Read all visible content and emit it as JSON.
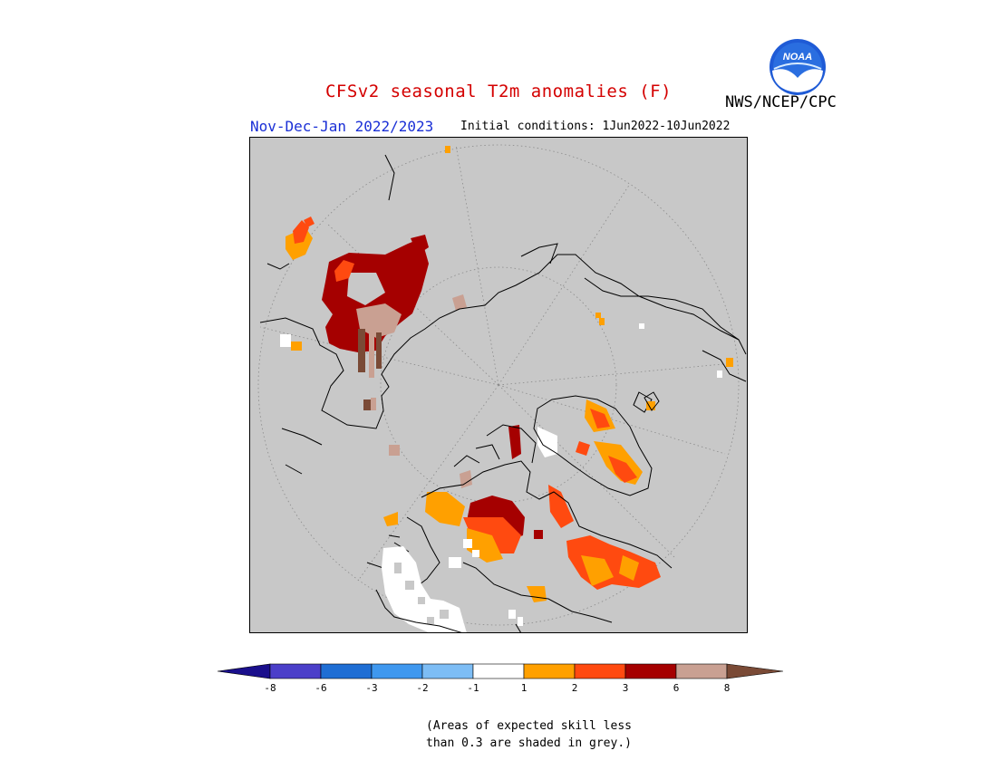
{
  "header": {
    "title": "CFSv2 seasonal T2m anomalies (F)",
    "agency": "NWS/NCEP/CPC",
    "logo_text": "NOAA",
    "season": "Nov-Dec-Jan 2022/2023",
    "initial_conditions": "Initial conditions: 1Jun2022-10Jun2022"
  },
  "legend": {
    "tick_labels": [
      "-8",
      "-6",
      "-3",
      "-2",
      "-1",
      "1",
      "2",
      "3",
      "6",
      "8"
    ],
    "bins": [
      {
        "range": "< -8",
        "color": "#1a0f8c"
      },
      {
        "range": "-8 to -6",
        "color": "#4b3fc9"
      },
      {
        "range": "-6 to -3",
        "color": "#1f6ed4"
      },
      {
        "range": "-3 to -2",
        "color": "#3f98ef"
      },
      {
        "range": "-2 to -1",
        "color": "#7dbdf5"
      },
      {
        "range": "-1 to 1",
        "color": "#ffffff"
      },
      {
        "range": "1 to 2",
        "color": "#ffa000"
      },
      {
        "range": "2 to 3",
        "color": "#ff4a10"
      },
      {
        "range": "3 to 6",
        "color": "#a50000"
      },
      {
        "range": "6 to 8",
        "color": "#c9a092"
      },
      {
        "range": "> 8",
        "color": "#7a4a36"
      }
    ]
  },
  "note": {
    "line1": "(Areas of expected skill less",
    "line2": "than 0.3 are shaded in grey.)"
  },
  "map": {
    "projection": "north-polar-stereographic",
    "background_color": "#c8c8c8",
    "regions_colors": {
      "grey_low_skill": "#c8c8c8",
      "near_normal": "#ffffff",
      "above_1_2": "#ffa000",
      "above_2_3": "#ff4a10",
      "above_3_6": "#a50000",
      "above_6_8": "#c9a092"
    }
  }
}
